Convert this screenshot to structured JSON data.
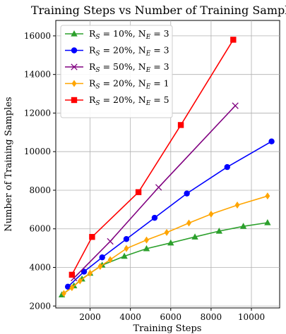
{
  "chart_data": {
    "type": "line",
    "title": "Training Steps vs Number of Training Samples",
    "xlabel": "Training Steps",
    "ylabel": "Number of Training Samples",
    "xlim": [
      300,
      11400
    ],
    "ylim": [
      1900,
      16800
    ],
    "xticks": [
      2000,
      4000,
      6000,
      8000,
      10000
    ],
    "yticks": [
      2000,
      4000,
      6000,
      8000,
      10000,
      12000,
      14000,
      16000
    ],
    "grid": true,
    "legend_position": "top-left",
    "series": [
      {
        "name": "R_S = 10%, N_E = 3",
        "legend": {
          "prefix": "R",
          "sub1": "S",
          "mid": " = 10%, N",
          "sub2": "E",
          "suffix": " = 3"
        },
        "color": "#2ca02c",
        "marker": "triangle",
        "x": [
          600,
          1200,
          1600,
          2000,
          2600,
          3700,
          4800,
          6000,
          7200,
          8400,
          9600,
          10800
        ],
        "y": [
          2580,
          3050,
          3400,
          3700,
          4120,
          4580,
          4970,
          5270,
          5580,
          5880,
          6130,
          6320
        ]
      },
      {
        "name": "R_S = 20%, N_E = 3",
        "legend": {
          "prefix": "R",
          "sub1": "S",
          "mid": " = 20%, N",
          "sub2": "E",
          "suffix": " = 3"
        },
        "color": "#0000ff",
        "marker": "circle",
        "x": [
          900,
          1700,
          2600,
          3800,
          5200,
          6800,
          8800,
          11000
        ],
        "y": [
          3000,
          3780,
          4520,
          5470,
          6570,
          7830,
          9200,
          10530
        ]
      },
      {
        "name": "R_S = 50%, N_E = 3",
        "legend": {
          "prefix": "R",
          "sub1": "S",
          "mid": " = 50%, N",
          "sub2": "E",
          "suffix": " = 3"
        },
        "color": "#800080",
        "marker": "x",
        "x": [
          1200,
          3000,
          5400,
          9200
        ],
        "y": [
          3450,
          5350,
          8150,
          12380
        ]
      },
      {
        "name": "R_S = 20%, N_E = 1",
        "legend": {
          "prefix": "R",
          "sub1": "S",
          "mid": " = 20%, N",
          "sub2": "E",
          "suffix": " = 1"
        },
        "color": "#ffa500",
        "marker": "diamond",
        "x": [
          700,
          1100,
          1500,
          2000,
          2500,
          3000,
          3800,
          4800,
          5800,
          6900,
          8000,
          9300,
          10800
        ],
        "y": [
          2650,
          2950,
          3300,
          3700,
          4050,
          4400,
          4980,
          5420,
          5810,
          6300,
          6760,
          7230,
          7700
        ]
      },
      {
        "name": "R_S = 20%, N_E = 5",
        "legend": {
          "prefix": "R",
          "sub1": "S",
          "mid": " = 20%, N",
          "sub2": "E",
          "suffix": " = 5"
        },
        "color": "#ff0000",
        "marker": "square",
        "x": [
          1100,
          2100,
          4400,
          6500,
          9100
        ],
        "y": [
          3620,
          5580,
          7900,
          11380,
          15800
        ]
      }
    ]
  }
}
